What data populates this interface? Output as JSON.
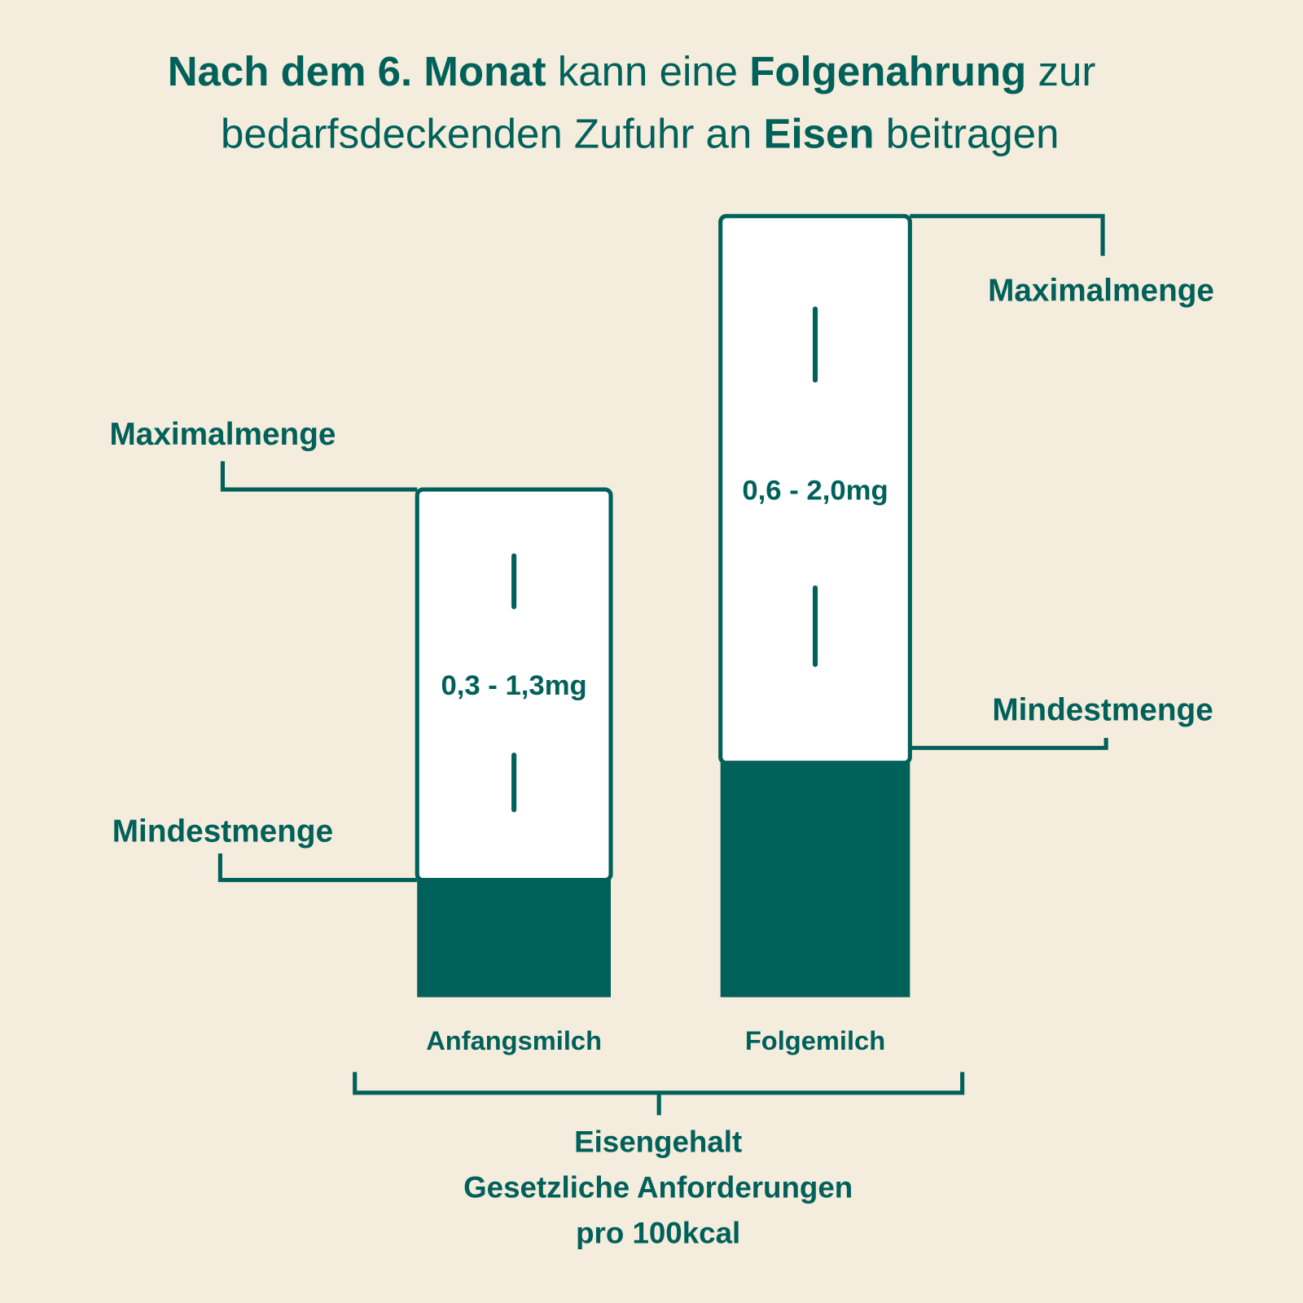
{
  "title": {
    "line1": [
      {
        "text": "Nach dem 6. Monat",
        "bold": true
      },
      {
        "text": " kann eine ",
        "bold": false
      },
      {
        "text": "Folgenahrung",
        "bold": true
      },
      {
        "text": " zur",
        "bold": false
      }
    ],
    "line2": [
      {
        "text": "bedarfsdeckenden Zufuhr an ",
        "bold": false
      },
      {
        "text": "Eisen",
        "bold": true
      },
      {
        "text": " beitragen",
        "bold": false
      }
    ]
  },
  "colors": {
    "background": "#f4ecdc",
    "accent": "#00605a",
    "range": "#ffffff"
  },
  "chart_data": {
    "type": "bar",
    "subtype": "floating range bar on base bar",
    "categories": [
      "Anfangsmilch",
      "Folgemilch"
    ],
    "series": [
      {
        "category": "Anfangsmilch",
        "min": 0.3,
        "max": 1.3,
        "label": "0,3 - 1,3mg"
      },
      {
        "category": "Folgemilch",
        "min": 0.6,
        "max": 2.0,
        "label": "0,6 - 2,0mg"
      }
    ],
    "annotations": {
      "max": "Maximalmenge",
      "min": "Mindestmenge"
    },
    "unit": "mg",
    "xlabel_lines": [
      "Eisengehalt",
      "Gesetzliche Anforderungen",
      "pro 100kcal"
    ],
    "grid": false,
    "axes_visible": false
  }
}
